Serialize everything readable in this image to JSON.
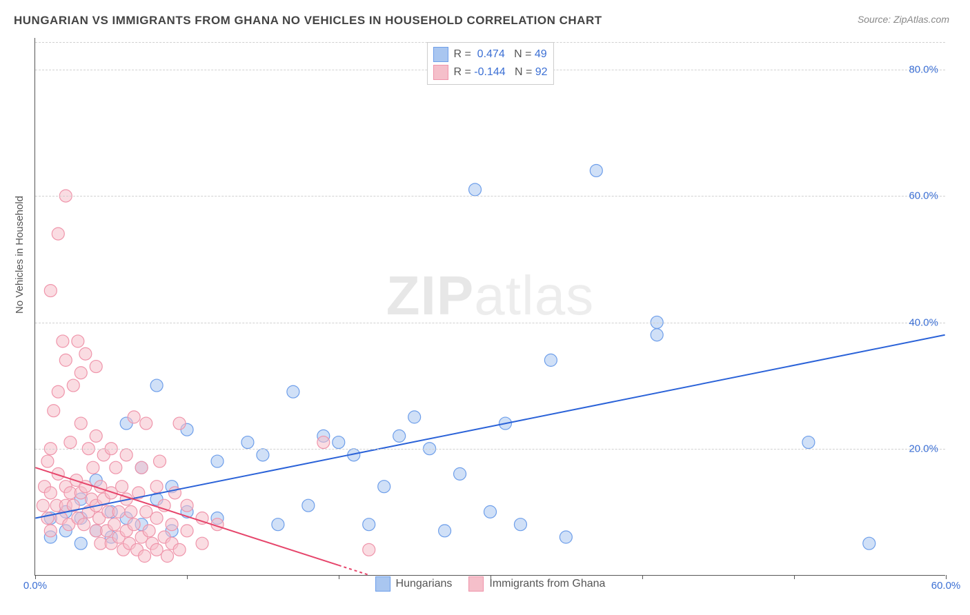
{
  "title": "HUNGARIAN VS IMMIGRANTS FROM GHANA NO VEHICLES IN HOUSEHOLD CORRELATION CHART",
  "source_prefix": "Source: ",
  "source": "ZipAtlas.com",
  "ylabel": "No Vehicles in Household",
  "watermark_bold": "ZIP",
  "watermark_light": "atlas",
  "chart": {
    "type": "scatter",
    "background_color": "#ffffff",
    "grid_color": "#d0d0d0",
    "axis_color": "#555555",
    "xlim": [
      0,
      60
    ],
    "ylim": [
      0,
      85
    ],
    "xticks": [
      0,
      10,
      20,
      30,
      40,
      50,
      60
    ],
    "xtick_labels": {
      "0": "0.0%",
      "60": "60.0%"
    },
    "xtick_color": "#3b6fd4",
    "yticks": [
      20,
      40,
      60,
      80
    ],
    "ytick_labels": {
      "20": "20.0%",
      "40": "40.0%",
      "60": "60.0%",
      "80": "80.0%"
    },
    "ytick_color": "#3b6fd4",
    "marker_radius": 9,
    "marker_opacity": 0.55,
    "marker_stroke_width": 1.2,
    "line_width": 2,
    "legend_top": [
      {
        "swatch_fill": "#a9c6f0",
        "swatch_border": "#6d9eea",
        "r_label": "R =  ",
        "r_value": "0.474",
        "n_label": "N = ",
        "n_value": "49",
        "text_color": "#3b6fd4"
      },
      {
        "swatch_fill": "#f5bfca",
        "swatch_border": "#ef94aa",
        "r_label": "R = ",
        "r_value": "-0.144",
        "n_label": "N = ",
        "n_value": "92",
        "text_color": "#3b6fd4"
      }
    ],
    "legend_bottom": [
      {
        "swatch_fill": "#a9c6f0",
        "swatch_border": "#6d9eea",
        "label": "Hungarians"
      },
      {
        "swatch_fill": "#f5bfca",
        "swatch_border": "#ef94aa",
        "label": "Immigrants from Ghana"
      }
    ],
    "series": [
      {
        "name": "Hungarians",
        "color_fill": "#a9c6f0",
        "color_stroke": "#6d9eea",
        "trend_color": "#2a62d8",
        "trend": {
          "x1": 0,
          "y1": 9,
          "x2": 60,
          "y2": 38
        },
        "points": [
          [
            1,
            6
          ],
          [
            1,
            9
          ],
          [
            2,
            7
          ],
          [
            2,
            10
          ],
          [
            3,
            5
          ],
          [
            3,
            9
          ],
          [
            3,
            12
          ],
          [
            4,
            7
          ],
          [
            4,
            15
          ],
          [
            5,
            6
          ],
          [
            5,
            10
          ],
          [
            6,
            9
          ],
          [
            6,
            24
          ],
          [
            7,
            8
          ],
          [
            7,
            17
          ],
          [
            8,
            12
          ],
          [
            8,
            30
          ],
          [
            9,
            7
          ],
          [
            9,
            14
          ],
          [
            10,
            10
          ],
          [
            10,
            23
          ],
          [
            12,
            9
          ],
          [
            12,
            18
          ],
          [
            14,
            21
          ],
          [
            15,
            19
          ],
          [
            16,
            8
          ],
          [
            17,
            29
          ],
          [
            18,
            11
          ],
          [
            19,
            22
          ],
          [
            20,
            21
          ],
          [
            21,
            19
          ],
          [
            22,
            8
          ],
          [
            23,
            14
          ],
          [
            24,
            22
          ],
          [
            25,
            25
          ],
          [
            26,
            20
          ],
          [
            27,
            7
          ],
          [
            28,
            16
          ],
          [
            29,
            61
          ],
          [
            30,
            10
          ],
          [
            31,
            24
          ],
          [
            32,
            8
          ],
          [
            34,
            34
          ],
          [
            35,
            6
          ],
          [
            37,
            64
          ],
          [
            41,
            40
          ],
          [
            41,
            38
          ],
          [
            51,
            21
          ],
          [
            55,
            5
          ]
        ]
      },
      {
        "name": "Immigrants from Ghana",
        "color_fill": "#f5bfca",
        "color_stroke": "#ef94aa",
        "trend_color": "#e6456b",
        "trend": {
          "x1": 0,
          "y1": 17,
          "x2": 22,
          "y2": 0
        },
        "trend_dash": "4,4",
        "trend_dash_from_x": 20,
        "points": [
          [
            0.5,
            11
          ],
          [
            0.6,
            14
          ],
          [
            0.8,
            9
          ],
          [
            0.8,
            18
          ],
          [
            1,
            7
          ],
          [
            1,
            13
          ],
          [
            1,
            20
          ],
          [
            1,
            45
          ],
          [
            1.2,
            26
          ],
          [
            1.4,
            11
          ],
          [
            1.5,
            29
          ],
          [
            1.5,
            16
          ],
          [
            1.5,
            54
          ],
          [
            1.7,
            9
          ],
          [
            1.8,
            37
          ],
          [
            2,
            11
          ],
          [
            2,
            14
          ],
          [
            2,
            34
          ],
          [
            2,
            60
          ],
          [
            2.2,
            8
          ],
          [
            2.3,
            13
          ],
          [
            2.3,
            21
          ],
          [
            2.5,
            11
          ],
          [
            2.5,
            30
          ],
          [
            2.7,
            15
          ],
          [
            2.8,
            9
          ],
          [
            2.8,
            37
          ],
          [
            3,
            13
          ],
          [
            3,
            24
          ],
          [
            3,
            32
          ],
          [
            3.2,
            8
          ],
          [
            3.3,
            14
          ],
          [
            3.3,
            35
          ],
          [
            3.5,
            10
          ],
          [
            3.5,
            20
          ],
          [
            3.7,
            12
          ],
          [
            3.8,
            17
          ],
          [
            4,
            7
          ],
          [
            4,
            11
          ],
          [
            4,
            22
          ],
          [
            4,
            33
          ],
          [
            4.2,
            9
          ],
          [
            4.3,
            5
          ],
          [
            4.3,
            14
          ],
          [
            4.5,
            12
          ],
          [
            4.5,
            19
          ],
          [
            4.7,
            7
          ],
          [
            4.8,
            10
          ],
          [
            5,
            5
          ],
          [
            5,
            13
          ],
          [
            5,
            20
          ],
          [
            5.2,
            8
          ],
          [
            5.3,
            17
          ],
          [
            5.5,
            6
          ],
          [
            5.5,
            10
          ],
          [
            5.7,
            14
          ],
          [
            5.8,
            4
          ],
          [
            6,
            7
          ],
          [
            6,
            12
          ],
          [
            6,
            19
          ],
          [
            6.2,
            5
          ],
          [
            6.3,
            10
          ],
          [
            6.5,
            25
          ],
          [
            6.5,
            8
          ],
          [
            6.7,
            4
          ],
          [
            6.8,
            13
          ],
          [
            7,
            6
          ],
          [
            7,
            17
          ],
          [
            7.2,
            3
          ],
          [
            7.3,
            10
          ],
          [
            7.3,
            24
          ],
          [
            7.5,
            7
          ],
          [
            7.7,
            5
          ],
          [
            8,
            9
          ],
          [
            8,
            14
          ],
          [
            8,
            4
          ],
          [
            8.2,
            18
          ],
          [
            8.5,
            6
          ],
          [
            8.5,
            11
          ],
          [
            8.7,
            3
          ],
          [
            9,
            8
          ],
          [
            9,
            5
          ],
          [
            9.2,
            13
          ],
          [
            9.5,
            4
          ],
          [
            9.5,
            24
          ],
          [
            10,
            7
          ],
          [
            10,
            11
          ],
          [
            11,
            9
          ],
          [
            11,
            5
          ],
          [
            12,
            8
          ],
          [
            19,
            21
          ],
          [
            22,
            4
          ]
        ]
      }
    ]
  }
}
